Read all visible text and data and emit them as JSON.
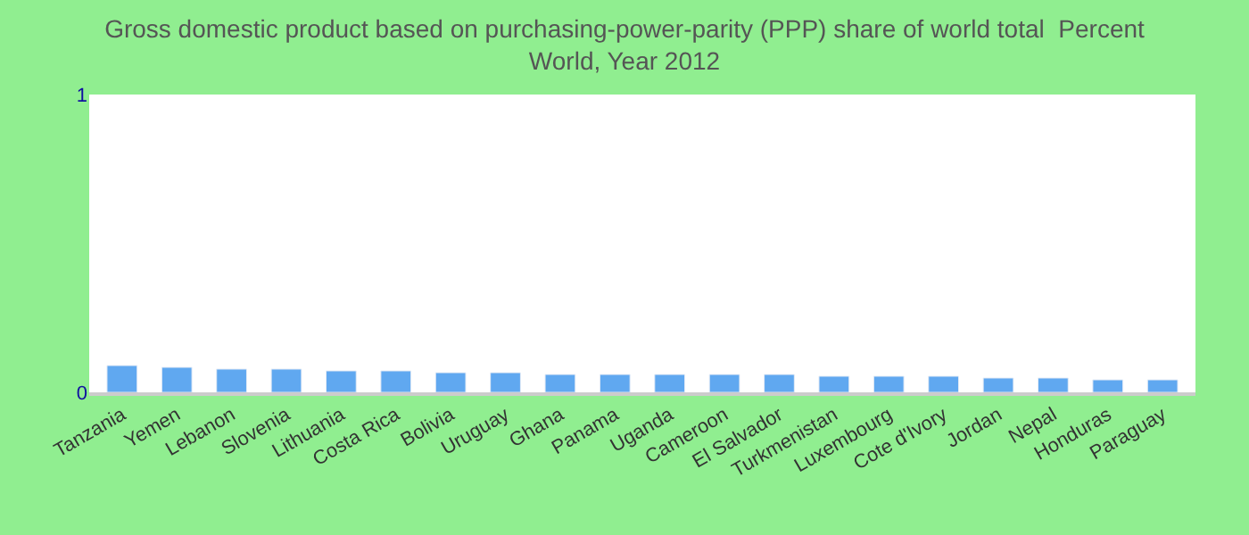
{
  "chart_data": {
    "type": "bar",
    "title": "Gross domestic product based on purchasing-power-parity (PPP) share of world total  Percent\nWorld, Year 2012",
    "categories": [
      "Tanzania",
      "Yemen",
      "Lebanon",
      "Slovenia",
      "Lithuania",
      "Costa Rica",
      "Bolivia",
      "Uruguay",
      "Ghana",
      "Panama",
      "Uganda",
      "Cameroon",
      "El Salvador",
      "Turkmenistan",
      "Luxembourg",
      "Cote d'Ivory",
      "Jordan",
      "Nepal",
      "Honduras",
      "Paraguay"
    ],
    "values": [
      0.09,
      0.084,
      0.078,
      0.078,
      0.072,
      0.072,
      0.066,
      0.066,
      0.06,
      0.06,
      0.06,
      0.06,
      0.06,
      0.054,
      0.054,
      0.054,
      0.048,
      0.048,
      0.042,
      0.042
    ],
    "color": "#60a8f0",
    "ylim": [
      0,
      1
    ],
    "yticks": [
      0,
      1
    ]
  }
}
